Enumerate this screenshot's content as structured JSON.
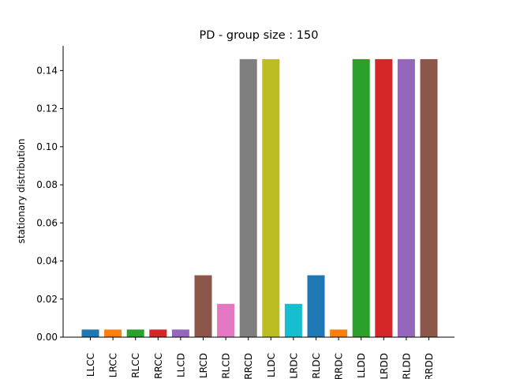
{
  "chart_data": {
    "type": "bar",
    "title": "PD - group size : 150",
    "xlabel": "",
    "ylabel": "stationary distribution",
    "ylim": [
      0,
      0.153
    ],
    "yticks": [
      "0.00",
      "0.02",
      "0.04",
      "0.06",
      "0.08",
      "0.10",
      "0.12",
      "0.14"
    ],
    "grid": false,
    "categories": [
      "LLCC",
      "LRCC",
      "RLCC",
      "RRCC",
      "LLCD",
      "LRCD",
      "RLCD",
      "RRCD",
      "LLDC",
      "LRDC",
      "RLDC",
      "RRDC",
      "LLDD",
      "LRDD",
      "RLDD",
      "RRDD"
    ],
    "values": [
      0.004,
      0.004,
      0.004,
      0.004,
      0.004,
      0.0325,
      0.0175,
      0.146,
      0.146,
      0.0175,
      0.0325,
      0.004,
      0.146,
      0.146,
      0.146,
      0.146
    ],
    "colors": [
      "#1f77b4",
      "#ff7f0e",
      "#2ca02c",
      "#d62728",
      "#9467bd",
      "#8c564b",
      "#e377c2",
      "#7f7f7f",
      "#bcbd22",
      "#17becf",
      "#1f77b4",
      "#ff7f0e",
      "#2ca02c",
      "#d62728",
      "#9467bd",
      "#8c564b"
    ]
  }
}
